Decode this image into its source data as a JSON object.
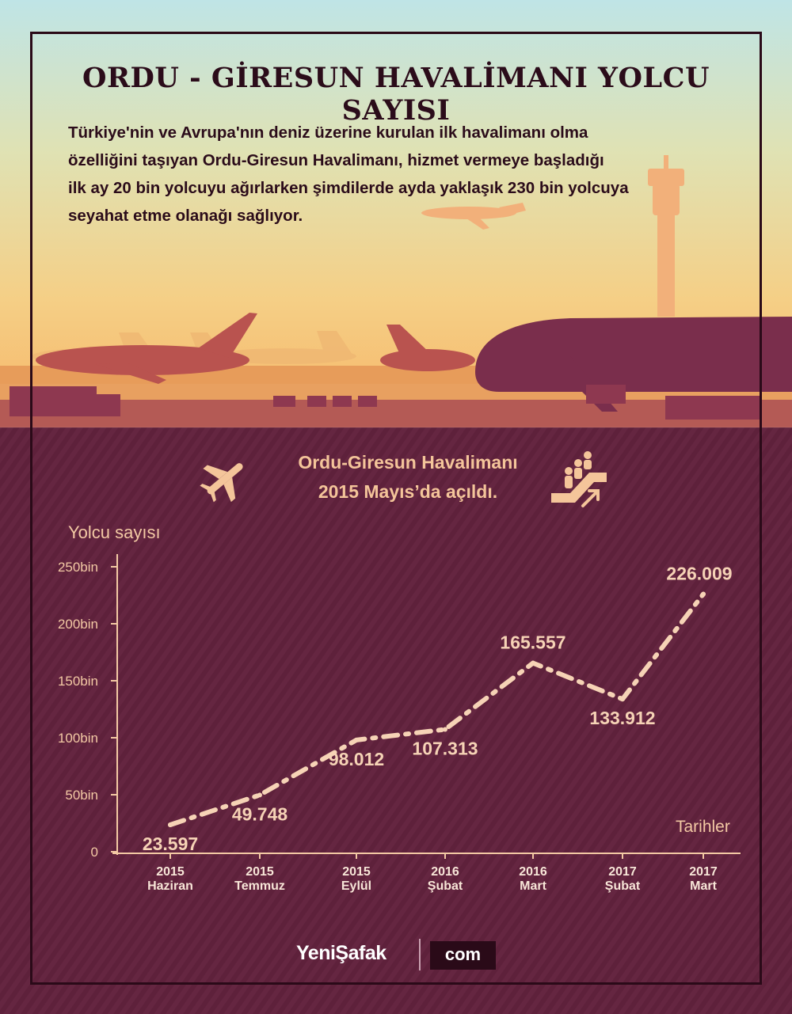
{
  "title": "ORDU - GİRESUN HAVALİMANI YOLCU SAYISI",
  "description_lines": [
    "Türkiye'nin ve Avrupa'nın deniz üzerine kurulan ilk havalimanı olma",
    "özelliğini taşıyan Ordu-Giresun Havalimanı, hizmet vermeye başladığı",
    "ilk ay 20 bin yolcuyu ağırlarken şimdilerde ayda yaklaşık 230 bin yolcuya",
    "seyahat etme olanağı sağlıyor."
  ],
  "note_lines": [
    "Ordu-Giresun Havalimanı",
    "2015 Mayıs’da açıldı."
  ],
  "icons": [
    "airplane-icon",
    "passenger-escalator-icon"
  ],
  "colors": {
    "sky_top": "#bfe3e4",
    "sky_bottom": "#f3c07c",
    "ground": "#6b2a46",
    "accent": "#f3c9a4",
    "title": "#2b0c1a"
  },
  "chart_data": {
    "type": "line",
    "ylabel": "Yolcu sayısı",
    "xlabel": "Tarihler",
    "ylim": [
      0,
      250000
    ],
    "yticks": [
      "0",
      "50bin",
      "100bin",
      "150bin",
      "200bin",
      "250bin"
    ],
    "categories": [
      [
        "2015",
        "Haziran"
      ],
      [
        "2015",
        "Temmuz"
      ],
      [
        "2015",
        "Eylül"
      ],
      [
        "2016",
        "Şubat"
      ],
      [
        "2016",
        "Mart"
      ],
      [
        "2017",
        "Şubat"
      ],
      [
        "2017",
        "Mart"
      ]
    ],
    "values": [
      23597,
      49748,
      98012,
      107313,
      165557,
      133912,
      226009
    ],
    "value_labels": [
      "23.597",
      "49.748",
      "98.012",
      "107.313",
      "165.557",
      "133.912",
      "226.009"
    ],
    "line_style": "dash-dot"
  },
  "brand": {
    "name": "YeniŞafak",
    "suffix": "com"
  }
}
